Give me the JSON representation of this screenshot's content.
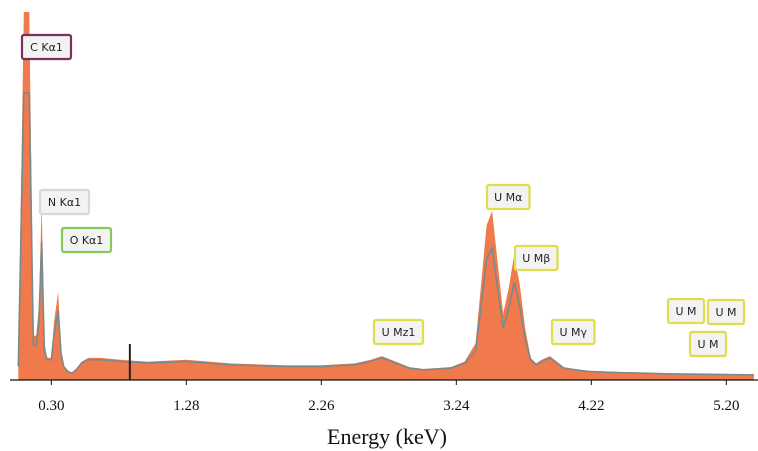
{
  "chart_data": {
    "type": "area",
    "title": "",
    "xlabel": "Energy (keV)",
    "ylabel": "",
    "xlim": [
      0.0,
      5.43
    ],
    "ylim": [
      0,
      100
    ],
    "x_ticks": [
      0.3,
      1.28,
      2.26,
      3.24,
      4.22,
      5.2
    ],
    "x_tick_labels": [
      "0.30",
      "1.28",
      "2.26",
      "3.24",
      "4.22",
      "5.20"
    ],
    "grid": false,
    "series": [
      {
        "color": "#f07a4c",
        "x": [
          0.06,
          0.1,
          0.14,
          0.17,
          0.19,
          0.21,
          0.23,
          0.25,
          0.27,
          0.3,
          0.32,
          0.35,
          0.37,
          0.39,
          0.42,
          0.45,
          0.48,
          0.52,
          0.57,
          0.62,
          0.66,
          0.8,
          1.0,
          1.28,
          1.6,
          2.0,
          2.26,
          2.5,
          2.62,
          2.7,
          2.8,
          2.9,
          3.0,
          3.2,
          3.3,
          3.38,
          3.42,
          3.46,
          3.5,
          3.54,
          3.58,
          3.62,
          3.66,
          3.7,
          3.74,
          3.78,
          3.82,
          3.86,
          3.92,
          3.97,
          4.02,
          4.1,
          4.2,
          4.4,
          4.6,
          4.8,
          5.0,
          5.2,
          5.4
        ],
        "y": [
          4,
          100,
          100,
          12,
          12,
          20,
          48,
          10,
          6,
          6,
          16,
          24,
          8,
          4,
          2.5,
          2,
          3,
          5,
          6,
          6,
          6,
          5.5,
          5,
          5.5,
          4.5,
          4,
          4,
          4.5,
          5.5,
          6.5,
          5,
          3.5,
          3,
          3.5,
          5,
          10,
          26,
          42,
          46,
          32,
          18,
          25,
          34,
          26,
          14,
          6,
          4.5,
          5.5,
          6.5,
          5,
          3.5,
          3,
          2.5,
          2.2,
          2,
          1.8,
          1.7,
          1.6,
          1.5
        ]
      }
    ],
    "peak_labels": [
      {
        "text": "C  Kα1",
        "energy": 0.26,
        "border_color": "#7b2f5c"
      },
      {
        "text": "N  Kα1",
        "energy": 0.39,
        "border_color": "#d8d8d8"
      },
      {
        "text": "O  Kα1",
        "energy": 0.52,
        "border_color": "#86c75a"
      },
      {
        "text": "U  Mz1",
        "energy": 2.74,
        "border_color": "#e0dd4a"
      },
      {
        "text": "U  Mα",
        "energy": 3.56,
        "border_color": "#e0dd4a"
      },
      {
        "text": "U  Mβ",
        "energy": 3.66,
        "border_color": "#e0dd4a"
      },
      {
        "text": "U  Mγ",
        "energy": 4.04,
        "border_color": "#e0dd4a"
      },
      {
        "text": "U  M",
        "energy": 4.96,
        "border_color": "#e0dd4a"
      },
      {
        "text": "U  M",
        "energy": 5.26,
        "border_color": "#e0dd4a"
      },
      {
        "text": "U  M",
        "energy": 5.13,
        "border_color": "#e0dd4a"
      }
    ],
    "marker_energy": 0.87,
    "colors": {
      "fill": "#f07a4c",
      "outline": "#7a8a8c"
    }
  }
}
